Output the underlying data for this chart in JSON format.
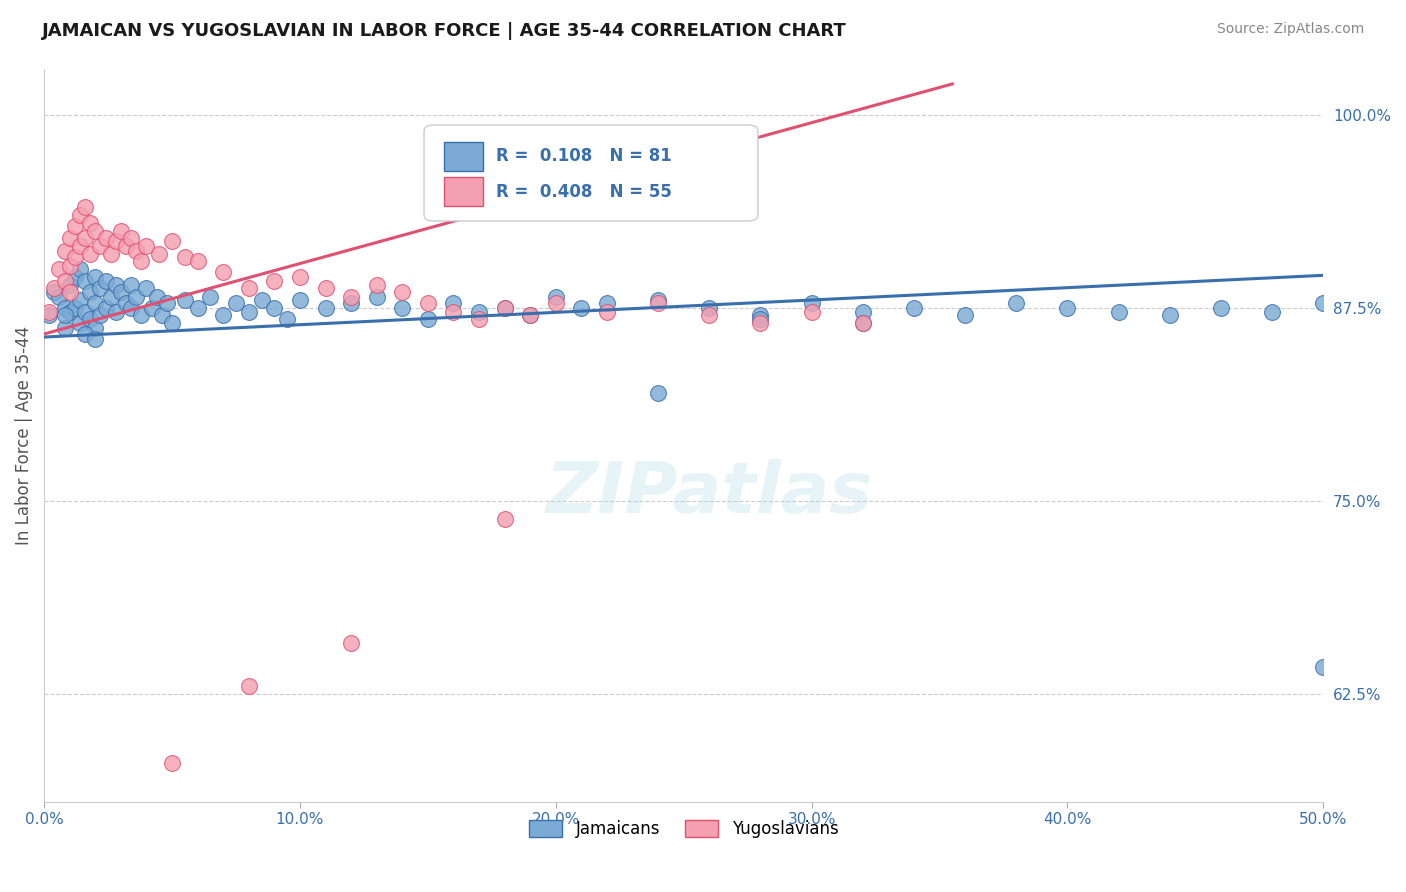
{
  "title": "JAMAICAN VS YUGOSLAVIAN IN LABOR FORCE | AGE 35-44 CORRELATION CHART",
  "source_text": "Source: ZipAtlas.com",
  "ylabel": "In Labor Force | Age 35-44",
  "xlim": [
    0.0,
    0.5
  ],
  "ylim": [
    0.555,
    1.03
  ],
  "yticks": [
    0.625,
    0.75,
    0.875,
    1.0
  ],
  "ytick_labels": [
    "62.5%",
    "75.0%",
    "87.5%",
    "100.0%"
  ],
  "xticks": [
    0.0,
    0.1,
    0.2,
    0.3,
    0.4,
    0.5
  ],
  "xtick_labels": [
    "0.0%",
    "10.0%",
    "20.0%",
    "30.0%",
    "40.0%",
    "50.0%"
  ],
  "blue_R": 0.108,
  "blue_N": 81,
  "pink_R": 0.408,
  "pink_N": 55,
  "blue_line_x": [
    0.0,
    0.5
  ],
  "blue_line_y": [
    0.856,
    0.896
  ],
  "pink_line_x": [
    0.0,
    0.355
  ],
  "pink_line_y": [
    0.858,
    1.02
  ],
  "blue_scatter_x": [
    0.002,
    0.004,
    0.006,
    0.008,
    0.008,
    0.01,
    0.01,
    0.012,
    0.012,
    0.014,
    0.014,
    0.014,
    0.016,
    0.016,
    0.018,
    0.018,
    0.02,
    0.02,
    0.02,
    0.022,
    0.022,
    0.024,
    0.024,
    0.026,
    0.028,
    0.028,
    0.03,
    0.032,
    0.034,
    0.034,
    0.036,
    0.038,
    0.04,
    0.042,
    0.044,
    0.046,
    0.048,
    0.05,
    0.055,
    0.06,
    0.065,
    0.07,
    0.075,
    0.08,
    0.085,
    0.09,
    0.095,
    0.1,
    0.11,
    0.12,
    0.13,
    0.14,
    0.15,
    0.16,
    0.17,
    0.18,
    0.19,
    0.2,
    0.21,
    0.22,
    0.24,
    0.26,
    0.28,
    0.3,
    0.32,
    0.34,
    0.36,
    0.38,
    0.4,
    0.42,
    0.44,
    0.46,
    0.48,
    0.5,
    0.5,
    0.008,
    0.016,
    0.02,
    0.28,
    0.32,
    0.24
  ],
  "blue_scatter_y": [
    0.87,
    0.885,
    0.882,
    0.875,
    0.862,
    0.89,
    0.872,
    0.895,
    0.875,
    0.9,
    0.88,
    0.865,
    0.892,
    0.872,
    0.885,
    0.868,
    0.895,
    0.878,
    0.862,
    0.888,
    0.87,
    0.892,
    0.875,
    0.882,
    0.89,
    0.872,
    0.885,
    0.878,
    0.89,
    0.875,
    0.882,
    0.87,
    0.888,
    0.875,
    0.882,
    0.87,
    0.878,
    0.865,
    0.88,
    0.875,
    0.882,
    0.87,
    0.878,
    0.872,
    0.88,
    0.875,
    0.868,
    0.88,
    0.875,
    0.878,
    0.882,
    0.875,
    0.868,
    0.878,
    0.872,
    0.875,
    0.87,
    0.882,
    0.875,
    0.878,
    0.88,
    0.875,
    0.87,
    0.878,
    0.872,
    0.875,
    0.87,
    0.878,
    0.875,
    0.872,
    0.87,
    0.875,
    0.872,
    0.878,
    0.642,
    0.87,
    0.858,
    0.855,
    0.868,
    0.865,
    0.82
  ],
  "pink_scatter_x": [
    0.002,
    0.004,
    0.006,
    0.008,
    0.008,
    0.01,
    0.01,
    0.01,
    0.012,
    0.012,
    0.014,
    0.014,
    0.016,
    0.016,
    0.018,
    0.018,
    0.02,
    0.022,
    0.024,
    0.026,
    0.028,
    0.03,
    0.032,
    0.034,
    0.036,
    0.038,
    0.04,
    0.045,
    0.05,
    0.055,
    0.06,
    0.07,
    0.08,
    0.09,
    0.1,
    0.11,
    0.12,
    0.13,
    0.14,
    0.15,
    0.16,
    0.17,
    0.18,
    0.19,
    0.2,
    0.22,
    0.24,
    0.26,
    0.28,
    0.3,
    0.32,
    0.18,
    0.12,
    0.08,
    0.05
  ],
  "pink_scatter_y": [
    0.872,
    0.888,
    0.9,
    0.912,
    0.892,
    0.92,
    0.902,
    0.885,
    0.928,
    0.908,
    0.935,
    0.915,
    0.94,
    0.92,
    0.93,
    0.91,
    0.925,
    0.915,
    0.92,
    0.91,
    0.918,
    0.925,
    0.915,
    0.92,
    0.912,
    0.905,
    0.915,
    0.91,
    0.918,
    0.908,
    0.905,
    0.898,
    0.888,
    0.892,
    0.895,
    0.888,
    0.882,
    0.89,
    0.885,
    0.878,
    0.872,
    0.868,
    0.875,
    0.87,
    0.878,
    0.872,
    0.878,
    0.87,
    0.865,
    0.872,
    0.865,
    0.738,
    0.658,
    0.63,
    0.58
  ],
  "blue_color": "#7baad4",
  "pink_color": "#f4a0b0",
  "blue_line_color": "#3a6fad",
  "pink_line_color": "#e05070",
  "background_color": "#ffffff",
  "grid_color": "#cccccc",
  "watermark": "ZIPatlas",
  "legend_labels": [
    "Jamaicans",
    "Yugoslavians"
  ]
}
